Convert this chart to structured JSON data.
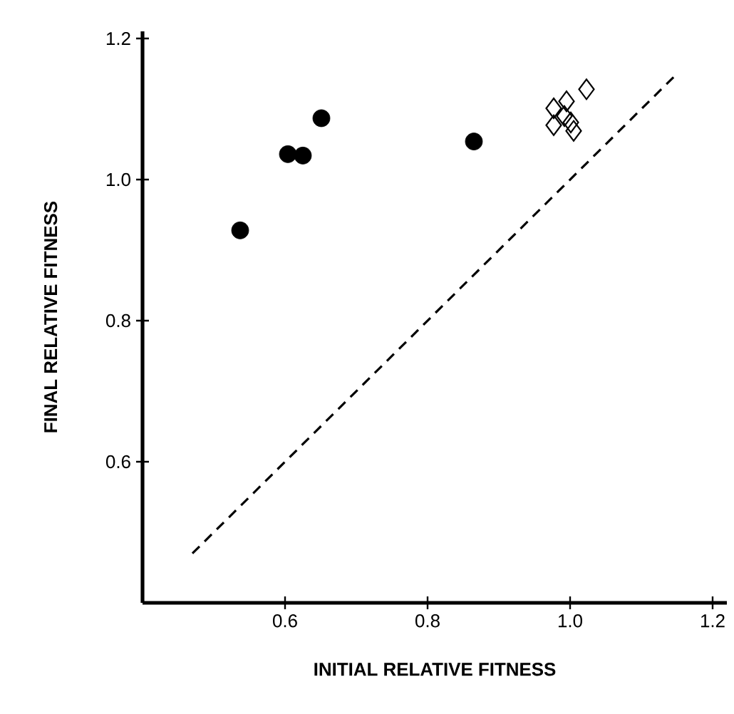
{
  "chart_data": {
    "type": "scatter",
    "xlabel": "INITIAL RELATIVE FITNESS",
    "ylabel": "FINAL RELATIVE FITNESS",
    "xlim": [
      0.4,
      1.22
    ],
    "ylim": [
      0.4,
      1.21
    ],
    "xticks": [
      0.6,
      0.8,
      {
        "value": 1.0,
        "label": "1.0"
      },
      1.2
    ],
    "yticks": [
      0.6,
      0.8,
      {
        "value": 1.0,
        "label": "1.0"
      },
      1.2
    ],
    "series": [
      {
        "marker": "circle",
        "color": "#000000",
        "x": [
          0.537,
          0.604,
          0.625,
          0.651,
          0.865
        ],
        "values": [
          0.928,
          1.036,
          1.034,
          1.087,
          1.054
        ]
      },
      {
        "marker": "diamond",
        "color": "#000000",
        "x": [
          0.977,
          0.995,
          1.023,
          0.977,
          0.992,
          1.001,
          1.005
        ],
        "values": [
          1.101,
          1.111,
          1.128,
          1.077,
          1.09,
          1.081,
          1.069
        ]
      },
      {
        "type": "line",
        "line_style": "dashed",
        "color": "#000000",
        "x": [
          0.47,
          1.147
        ],
        "values": [
          0.47,
          1.147
        ]
      }
    ]
  }
}
